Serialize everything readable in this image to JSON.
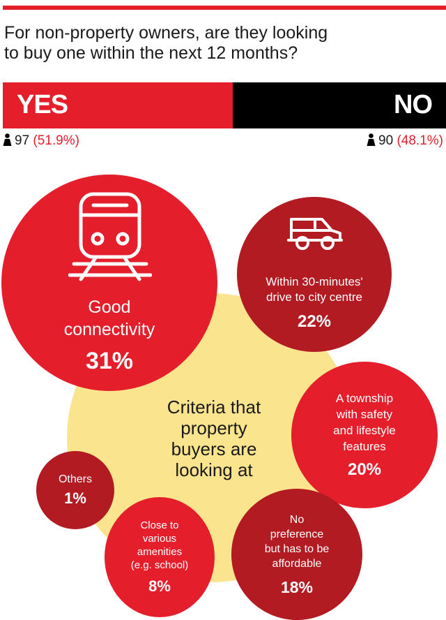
{
  "question": {
    "line1": "For non-property owners, are they looking",
    "line2": "to buy one within the next 12 months?"
  },
  "chart_data": [
    {
      "type": "bar",
      "categories": [
        "YES",
        "NO"
      ],
      "series": [
        {
          "values": [
            97,
            90
          ]
        },
        {
          "values": [
            51.9,
            48.1
          ]
        }
      ],
      "labels": {
        "yes": "YES",
        "no": "NO",
        "yes_count": "97",
        "no_count": "90",
        "yes_pct": "(51.9%)",
        "no_pct": "(48.1%)"
      }
    },
    {
      "type": "pie",
      "title": "Criteria that\nproperty\nbuyers are\nlooking at",
      "categories": [
        "Good\nconnectivity",
        "Within 30-minutes'\ndrive to city centre",
        "A township\nwith safety\nand lifestyle\nfeatures",
        "No\npreference\nbut has to be\naffordable",
        "Close to\nvarious\namenities\n(e.g. school)",
        "Others"
      ],
      "values": [
        31,
        22,
        20,
        18,
        8,
        1
      ],
      "value_labels": [
        "31%",
        "22%",
        "20%",
        "18%",
        "8%",
        "1%"
      ]
    }
  ],
  "colors": {
    "accent_red": "#e51e2b",
    "dark_red": "#b31b22",
    "yellow": "#fae58e",
    "black": "#000000"
  },
  "icons": [
    "person-icon",
    "train-icon",
    "car-icon"
  ]
}
